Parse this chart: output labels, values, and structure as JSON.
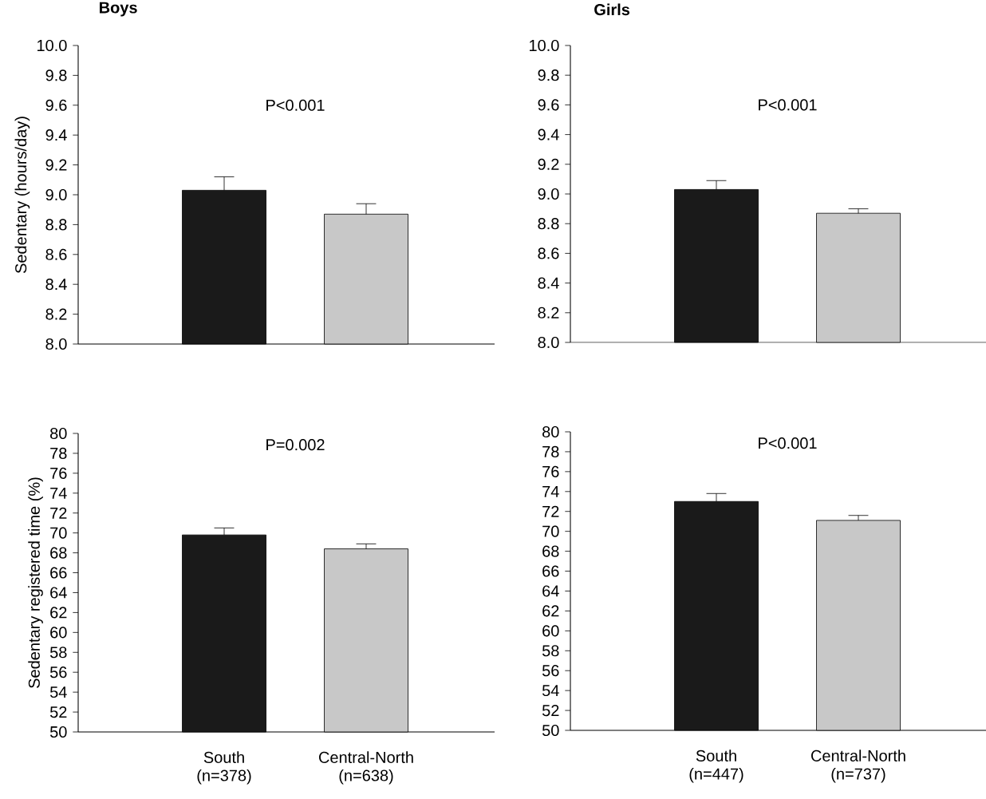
{
  "chart_data": [
    {
      "type": "bar",
      "title": "Boys",
      "ylabel": "Sedentary (hours/day)",
      "categories": [
        null,
        null
      ],
      "values": [
        9.03,
        8.87
      ],
      "colors": [
        "#1a1a1a",
        "#c8c8c8"
      ],
      "errors": [
        [
          9.03,
          9.12
        ],
        [
          8.87,
          8.94
        ]
      ],
      "ylim": [
        8,
        10
      ],
      "yticks": [
        {
          "value": 8,
          "label": "8.0"
        },
        {
          "value": 8.2,
          "label": "8.2"
        },
        {
          "value": 8.4,
          "label": "8.4"
        },
        {
          "value": 8.6,
          "label": "8.6"
        },
        {
          "value": 8.8,
          "label": "8.8"
        },
        {
          "value": 9,
          "label": "9.0"
        },
        {
          "value": 9.2,
          "label": "9.2"
        },
        {
          "value": 9.4,
          "label": "9.4"
        },
        {
          "value": 9.6,
          "label": "9.6"
        },
        {
          "value": 9.8,
          "label": "9.8"
        },
        {
          "value": 10,
          "label": "10.0"
        }
      ],
      "tick_labels": "y",
      "annotations": [
        "P<0.001"
      ]
    },
    {
      "type": "bar",
      "title": "Girls",
      "categories": [
        null,
        null
      ],
      "values": [
        9.03,
        8.87
      ],
      "colors": [
        "#1a1a1a",
        "#c8c8c8"
      ],
      "errors": [
        [
          9.03,
          9.09
        ],
        [
          8.87,
          8.9
        ]
      ],
      "ylim": [
        8,
        10
      ],
      "yticks": [
        {
          "value": 8,
          "label": "8.0"
        },
        {
          "value": 8.2,
          "label": "8.2"
        },
        {
          "value": 8.4,
          "label": "8.4"
        },
        {
          "value": 8.6,
          "label": "8.6"
        },
        {
          "value": 8.8,
          "label": "8.8"
        },
        {
          "value": 9,
          "label": "9.0"
        },
        {
          "value": 9.2,
          "label": "9.2"
        },
        {
          "value": 9.4,
          "label": "9.4"
        },
        {
          "value": 9.6,
          "label": "9.6"
        },
        {
          "value": 9.8,
          "label": "9.8"
        },
        {
          "value": 10,
          "label": "10.0"
        }
      ],
      "tick_labels": "y",
      "annotations": [
        "P<0.001"
      ]
    },
    {
      "type": "bar",
      "ylabel": "Sedentary registered time (%)",
      "categories": [
        "South (n=378)",
        "Central-North (n=638)"
      ],
      "values": [
        69.8,
        68.4
      ],
      "colors": [
        "#1a1a1a",
        "#c8c8c8"
      ],
      "errors": [
        [
          69.8,
          70.5
        ],
        [
          68.4,
          68.9
        ]
      ],
      "ylim": [
        50,
        80
      ],
      "yticks": [
        50,
        52,
        54,
        56,
        58,
        60,
        62,
        64,
        66,
        68,
        70,
        72,
        74,
        76,
        78,
        80
      ],
      "annotations": [
        "P=0.002"
      ]
    },
    {
      "type": "bar",
      "categories": [
        "South (n=447)",
        "Central-North (n=737)"
      ],
      "values": [
        73.0,
        71.1
      ],
      "colors": [
        "#1a1a1a",
        "#c8c8c8"
      ],
      "errors": [
        [
          73.0,
          73.8
        ],
        [
          71.1,
          71.6
        ]
      ],
      "ylim": [
        50,
        80
      ],
      "yticks": [
        50,
        52,
        54,
        56,
        58,
        60,
        62,
        64,
        66,
        68,
        70,
        72,
        74,
        76,
        78,
        80
      ],
      "annotations": [
        "P<0.001"
      ]
    }
  ]
}
